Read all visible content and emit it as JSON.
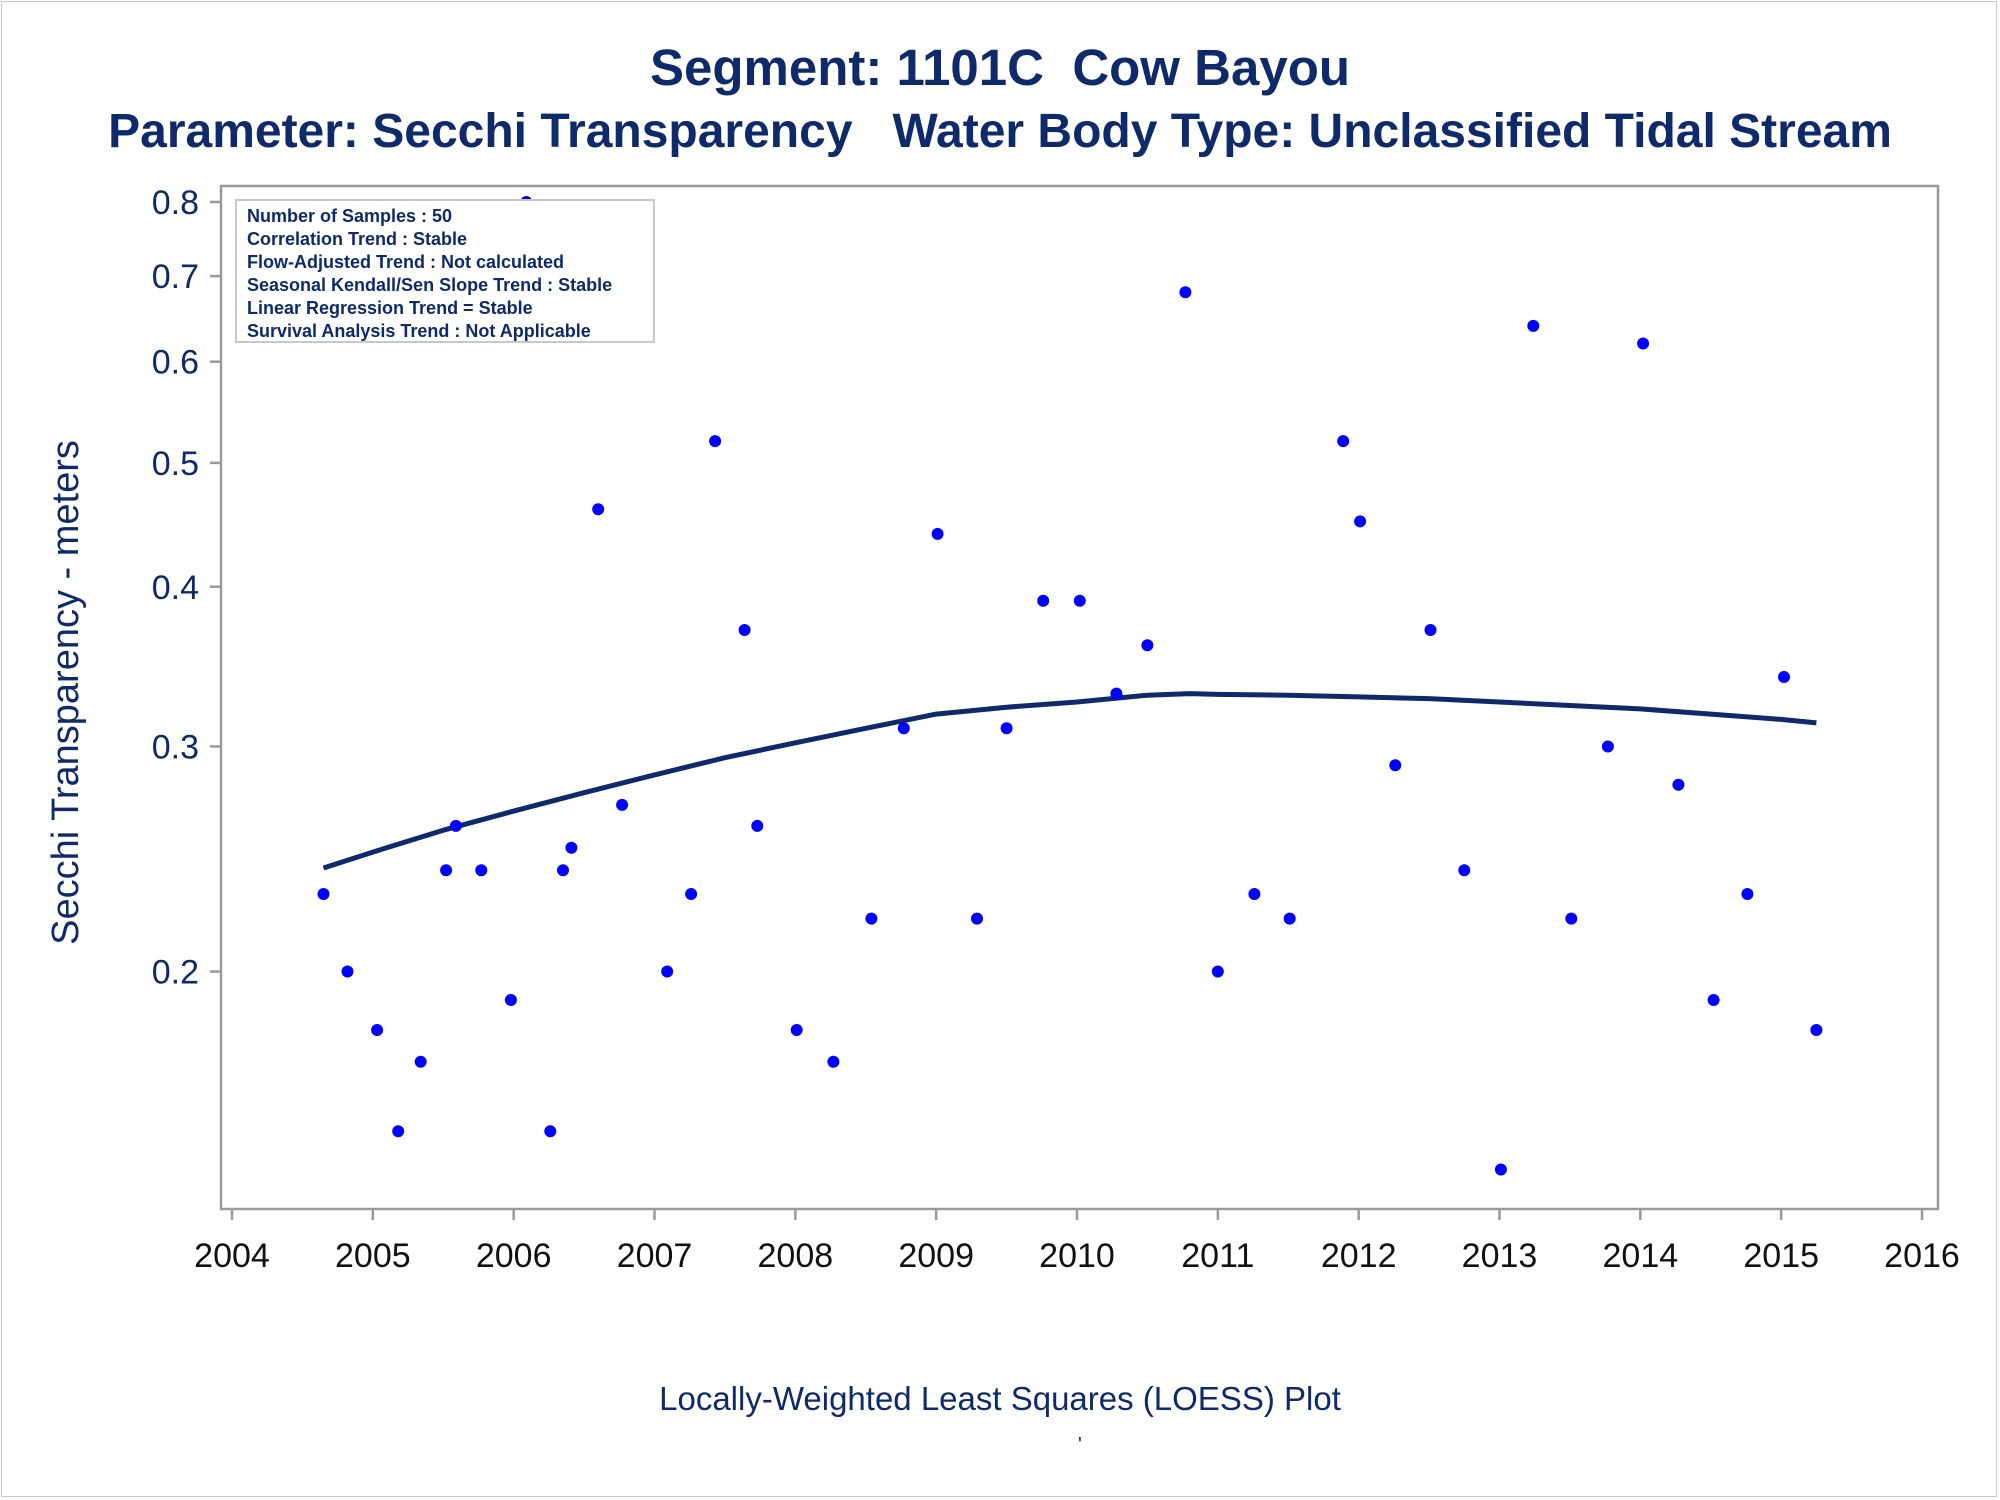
{
  "title": "Segment: 1101C  Cow Bayou",
  "subtitle": "Parameter: Secchi Transparency   Water Body Type: Unclassified Tidal Stream",
  "footnote": "Locally-Weighted Least Squares (LOESS) Plot",
  "footnote_mark": "'",
  "colors": {
    "text": "#0f2a6b",
    "points": "#0000ff",
    "loess": "#0f2a6b",
    "axis": "#9a9a9a"
  },
  "chart_data": {
    "type": "scatter",
    "xlabel": "",
    "ylabel": "Secchi Transparency - meters",
    "y_scale": "log",
    "xlim": [
      2004,
      2016
    ],
    "ylim": [
      0.133,
      0.8
    ],
    "x_ticks": [
      "2004",
      "2005",
      "2006",
      "2007",
      "2008",
      "2009",
      "2010",
      "2011",
      "2012",
      "2013",
      "2014",
      "2015",
      "2016"
    ],
    "y_ticks": [
      "0.2",
      "0.3",
      "0.4",
      "0.5",
      "0.6",
      "0.7",
      "0.8"
    ],
    "legend_placement": "top-left",
    "grid": false,
    "info_box": [
      "Number of Samples : 50",
      "Correlation Trend : Stable",
      "Flow-Adjusted Trend : Not calculated",
      "Seasonal Kendall/Sen Slope Trend : Stable",
      "Linear Regression Trend = Stable",
      "Survival Analysis Trend : Not Applicable"
    ],
    "points": [
      [
        2004.65,
        0.23
      ],
      [
        2004.82,
        0.2
      ],
      [
        2005.03,
        0.18
      ],
      [
        2005.18,
        0.15
      ],
      [
        2005.34,
        0.17
      ],
      [
        2005.52,
        0.24
      ],
      [
        2005.59,
        0.26
      ],
      [
        2005.77,
        0.24
      ],
      [
        2005.98,
        0.19
      ],
      [
        2006.09,
        0.8
      ],
      [
        2006.26,
        0.15
      ],
      [
        2006.35,
        0.24
      ],
      [
        2006.41,
        0.25
      ],
      [
        2006.6,
        0.46
      ],
      [
        2006.77,
        0.27
      ],
      [
        2007.09,
        0.2
      ],
      [
        2007.26,
        0.23
      ],
      [
        2007.43,
        0.52
      ],
      [
        2007.64,
        0.37
      ],
      [
        2007.73,
        0.26
      ],
      [
        2008.01,
        0.18
      ],
      [
        2008.27,
        0.17
      ],
      [
        2008.54,
        0.22
      ],
      [
        2008.77,
        0.31
      ],
      [
        2009.01,
        0.44
      ],
      [
        2009.29,
        0.22
      ],
      [
        2009.5,
        0.31
      ],
      [
        2009.76,
        0.39
      ],
      [
        2010.02,
        0.39
      ],
      [
        2010.28,
        0.33
      ],
      [
        2010.5,
        0.36
      ],
      [
        2010.77,
        0.68
      ],
      [
        2011.0,
        0.2
      ],
      [
        2011.26,
        0.23
      ],
      [
        2011.51,
        0.22
      ],
      [
        2011.89,
        0.52
      ],
      [
        2012.01,
        0.45
      ],
      [
        2012.26,
        0.29
      ],
      [
        2012.51,
        0.37
      ],
      [
        2012.75,
        0.24
      ],
      [
        2013.01,
        0.14
      ],
      [
        2013.24,
        0.64
      ],
      [
        2013.51,
        0.22
      ],
      [
        2013.77,
        0.3
      ],
      [
        2014.02,
        0.62
      ],
      [
        2014.27,
        0.28
      ],
      [
        2014.52,
        0.19
      ],
      [
        2014.76,
        0.23
      ],
      [
        2015.02,
        0.34
      ],
      [
        2015.25,
        0.18
      ]
    ],
    "loess": [
      [
        2004.65,
        0.241
      ],
      [
        2005.0,
        0.248
      ],
      [
        2005.5,
        0.258
      ],
      [
        2006.0,
        0.267
      ],
      [
        2006.5,
        0.276
      ],
      [
        2007.0,
        0.285
      ],
      [
        2007.5,
        0.294
      ],
      [
        2008.0,
        0.302
      ],
      [
        2008.5,
        0.31
      ],
      [
        2009.0,
        0.318
      ],
      [
        2009.5,
        0.322
      ],
      [
        2010.0,
        0.325
      ],
      [
        2010.5,
        0.329
      ],
      [
        2010.8,
        0.33
      ],
      [
        2011.0,
        0.3295
      ],
      [
        2011.5,
        0.329
      ],
      [
        2012.0,
        0.328
      ],
      [
        2012.5,
        0.327
      ],
      [
        2013.0,
        0.325
      ],
      [
        2013.5,
        0.323
      ],
      [
        2014.0,
        0.321
      ],
      [
        2014.5,
        0.318
      ],
      [
        2015.0,
        0.315
      ],
      [
        2015.25,
        0.313
      ]
    ]
  }
}
